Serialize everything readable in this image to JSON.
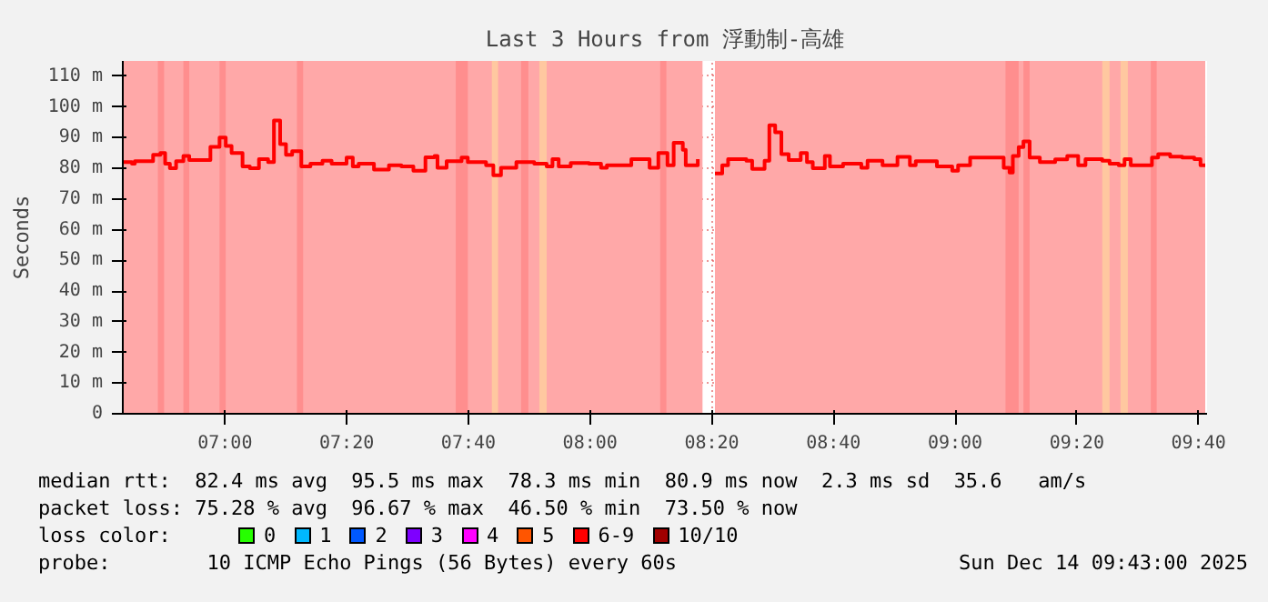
{
  "chart_data": {
    "type": "step",
    "title": "Last 3 Hours from 浮動制-高雄",
    "ylabel": "Seconds",
    "xlim": [
      6.72,
      9.69
    ],
    "ylim": [
      0,
      115
    ],
    "xticks": [
      {
        "value": 7,
        "label": "07:00"
      },
      {
        "value": 7.3333,
        "label": "07:20"
      },
      {
        "value": 7.6667,
        "label": "07:40"
      },
      {
        "value": 8,
        "label": "08:00"
      },
      {
        "value": 8.3333,
        "label": "08:20"
      },
      {
        "value": 8.6667,
        "label": "08:40"
      },
      {
        "value": 9,
        "label": "09:00"
      },
      {
        "value": 9.3333,
        "label": "09:20"
      },
      {
        "value": 9.6667,
        "label": "09:40"
      }
    ],
    "yticks": [
      0,
      {
        "value": 10,
        "label": "10 m"
      },
      {
        "value": 20,
        "label": "20 m"
      },
      {
        "value": 30,
        "label": "30 m"
      },
      {
        "value": 40,
        "label": "40 m"
      },
      {
        "value": 50,
        "label": "50 m"
      },
      {
        "value": 60,
        "label": "60 m"
      },
      {
        "value": 70,
        "label": "70 m"
      },
      {
        "value": 80,
        "label": "80 m"
      },
      {
        "value": 90,
        "label": "90 m"
      },
      {
        "value": 100,
        "label": "100 m"
      },
      {
        "value": 110,
        "label": "110 m"
      }
    ],
    "grid": true,
    "legend": "bottom left",
    "legend_title": "loss color:",
    "series": [
      {
        "name": "0",
        "color": "#26ff00"
      },
      {
        "name": "1",
        "color": "#00b8ff"
      },
      {
        "name": "2",
        "color": "#0059ff"
      },
      {
        "name": "3",
        "color": "#7e00ff"
      },
      {
        "name": "4",
        "color": "#ff00ff"
      },
      {
        "name": "5",
        "color": "#ff5500"
      },
      {
        "name": "6-9",
        "color": "#ff0000",
        "x": [
          6.72,
          6.745,
          6.753,
          6.803,
          6.823,
          6.836,
          6.849,
          6.866,
          6.886,
          6.902,
          6.96,
          6.985,
          7.002,
          7.018,
          7.048,
          7.068,
          7.093,
          7.118,
          7.134,
          7.151,
          7.167,
          7.184,
          7.209,
          7.234,
          7.267,
          7.292,
          7.333,
          7.35,
          7.366,
          7.408,
          7.449,
          7.483,
          7.516,
          7.549,
          7.574,
          7.582,
          7.607,
          7.648,
          7.665,
          7.715,
          7.735,
          7.756,
          7.798,
          7.847,
          7.881,
          7.897,
          7.914,
          7.947,
          7.997,
          8.03,
          8.046,
          8.113,
          8.163,
          8.187,
          8.212,
          8.229,
          8.254,
          8.262,
          8.295,
          8.308,
          8.342,
          8.362,
          8.378,
          8.428,
          8.444,
          8.478,
          8.491,
          8.507,
          8.524,
          8.544,
          8.577,
          8.594,
          8.61,
          8.643,
          8.657,
          8.693,
          8.743,
          8.76,
          8.801,
          8.842,
          8.876,
          8.892,
          8.95,
          8.992,
          9.008,
          9.041,
          9.108,
          9.133,
          9.149,
          9.158,
          9.174,
          9.187,
          9.204,
          9.232,
          9.274,
          9.307,
          9.337,
          9.357,
          9.403,
          9.423,
          9.448,
          9.464,
          9.481,
          9.519,
          9.539,
          9.556,
          9.589,
          9.622,
          9.655,
          9.672,
          9.685
        ],
        "values": [
          82,
          81.5,
          82.3,
          84.4,
          85,
          81.5,
          80,
          82.3,
          84,
          82.7,
          87,
          90,
          87.3,
          85,
          80.6,
          80,
          83,
          82,
          95.6,
          87.9,
          84.4,
          85.6,
          80.6,
          81.5,
          82.5,
          81.5,
          83.5,
          80.6,
          81.5,
          79.6,
          81,
          80.6,
          79.2,
          83.6,
          84,
          80.2,
          82.3,
          83.5,
          82,
          81,
          77.7,
          80.2,
          82,
          81.5,
          80.6,
          83,
          80.6,
          81.7,
          81.5,
          80.2,
          81,
          83,
          80.2,
          85,
          81,
          88.3,
          86,
          81,
          83,
          null,
          78.3,
          81,
          83,
          82.5,
          79.8,
          82.5,
          94,
          91.7,
          84.6,
          82.7,
          85,
          82,
          80,
          84,
          80.6,
          81.5,
          80.2,
          82.5,
          81,
          83.7,
          81,
          82.3,
          80.6,
          79.2,
          81,
          83.5,
          83.5,
          80.2,
          78.6,
          84,
          86.9,
          88.8,
          83.5,
          82,
          82.9,
          84,
          81,
          83,
          82.5,
          81.5,
          81,
          83,
          81,
          81,
          83.5,
          84.6,
          83.8,
          83.5,
          83,
          81,
          81
        ]
      },
      {
        "name": "10/10",
        "color": "#a00000"
      }
    ],
    "bands": [
      {
        "axis": "x",
        "from": 6.72,
        "to": 8.308,
        "color": "#ffa8a8"
      },
      {
        "axis": "x",
        "from": 8.342,
        "to": 9.685,
        "color": "#ffa8a8"
      },
      {
        "axis": "x",
        "from": 6.816,
        "to": 6.833,
        "color": "#ff8e8e"
      },
      {
        "axis": "x",
        "from": 6.886,
        "to": 6.902,
        "color": "#ff8e8e"
      },
      {
        "axis": "x",
        "from": 6.985,
        "to": 7.002,
        "color": "#ff8e8e"
      },
      {
        "axis": "x",
        "from": 7.197,
        "to": 7.214,
        "color": "#ff8e8e"
      },
      {
        "axis": "x",
        "from": 7.632,
        "to": 7.665,
        "color": "#ff8e8e"
      },
      {
        "axis": "x",
        "from": 7.811,
        "to": 7.831,
        "color": "#ff8e8e"
      },
      {
        "axis": "x",
        "from": 8.192,
        "to": 8.209,
        "color": "#ff8e8e"
      },
      {
        "axis": "x",
        "from": 9.138,
        "to": 9.174,
        "color": "#ff8e8e"
      },
      {
        "axis": "x",
        "from": 9.187,
        "to": 9.204,
        "color": "#ff8e8e"
      },
      {
        "axis": "x",
        "from": 9.536,
        "to": 9.552,
        "color": "#ff8e8e"
      },
      {
        "axis": "x",
        "from": 7.731,
        "to": 7.748,
        "color": "#ffc8a0"
      },
      {
        "axis": "x",
        "from": 7.861,
        "to": 7.881,
        "color": "#ffc8a0"
      },
      {
        "axis": "x",
        "from": 9.403,
        "to": 9.423,
        "color": "#ffc8a0"
      },
      {
        "axis": "x",
        "from": 9.453,
        "to": 9.473,
        "color": "#ffc8a0"
      }
    ],
    "annotations": [
      "median rtt:  82.4 ms avg  95.5 ms max  78.3 ms min  80.9 ms now  2.3 ms sd  35.6   am/s",
      "packet loss: 75.28 % avg  96.67 % max  46.50 % min  73.50 % now",
      "probe:        10 ICMP Echo Pings (56 Bytes) every 60s",
      "Sun Dec 14 09:43:00 2025"
    ]
  }
}
